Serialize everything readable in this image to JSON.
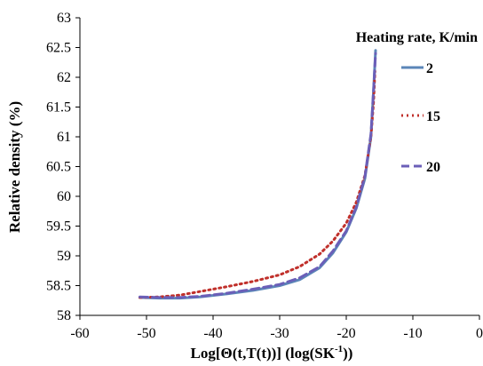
{
  "chart_data": {
    "type": "line",
    "title": "",
    "xlabel": "Log[Θ(t,T(t))]  (log(SK",
    "xlabel_sup": "-1",
    "xlabel_end": "))",
    "ylabel": "Relative density (%)",
    "xlim": [
      -60,
      0
    ],
    "ylim": [
      58,
      63
    ],
    "x_ticks": [
      -60,
      -50,
      -40,
      -30,
      -20,
      -10,
      0
    ],
    "x_tick_labels": [
      "-60",
      "-50",
      "-40",
      "-30",
      "-20",
      "-10",
      "0"
    ],
    "y_ticks": [
      58,
      58.5,
      59,
      59.5,
      60,
      60.5,
      61,
      61.5,
      62,
      62.5,
      63
    ],
    "y_tick_labels": [
      "58",
      "58.5",
      "59",
      "59.5",
      "60",
      "60.5",
      "61",
      "61.5",
      "62",
      "62.5",
      "63"
    ],
    "grid": false,
    "legend": {
      "title": "Heating rate, K/min",
      "placement": "top-right"
    },
    "series": [
      {
        "name": "2",
        "color": "#5b86b8",
        "dash": "solid",
        "x": [
          -51,
          -48,
          -45,
          -42,
          -38,
          -34,
          -30,
          -27,
          -24,
          -22,
          -20,
          -18.5,
          -17.2,
          -16.3,
          -15.9,
          -15.6
        ],
        "y": [
          58.3,
          58.29,
          58.29,
          58.31,
          58.36,
          58.42,
          58.5,
          58.6,
          58.8,
          59.05,
          59.4,
          59.8,
          60.3,
          61.0,
          61.8,
          62.45
        ]
      },
      {
        "name": "15",
        "color": "#c0302b",
        "dash": "dotted",
        "x": [
          -51,
          -48,
          -45,
          -42,
          -38,
          -34,
          -30,
          -27,
          -24,
          -22,
          -20,
          -18.5,
          -17.2,
          -16.3,
          -15.9,
          -15.7
        ],
        "y": [
          58.3,
          58.31,
          58.34,
          58.4,
          58.48,
          58.57,
          58.68,
          58.82,
          59.03,
          59.25,
          59.55,
          59.9,
          60.35,
          61.0,
          61.6,
          62.1
        ]
      },
      {
        "name": "20",
        "color": "#6b5fb8",
        "dash": "dashed",
        "x": [
          -51,
          -48,
          -45,
          -42,
          -38,
          -34,
          -30,
          -27,
          -24,
          -22,
          -20,
          -18.5,
          -17.2,
          -16.3,
          -15.9,
          -15.6
        ],
        "y": [
          58.31,
          58.3,
          58.3,
          58.32,
          58.37,
          58.44,
          58.52,
          58.63,
          58.82,
          59.08,
          59.42,
          59.82,
          60.33,
          61.05,
          61.8,
          62.4
        ]
      }
    ]
  }
}
